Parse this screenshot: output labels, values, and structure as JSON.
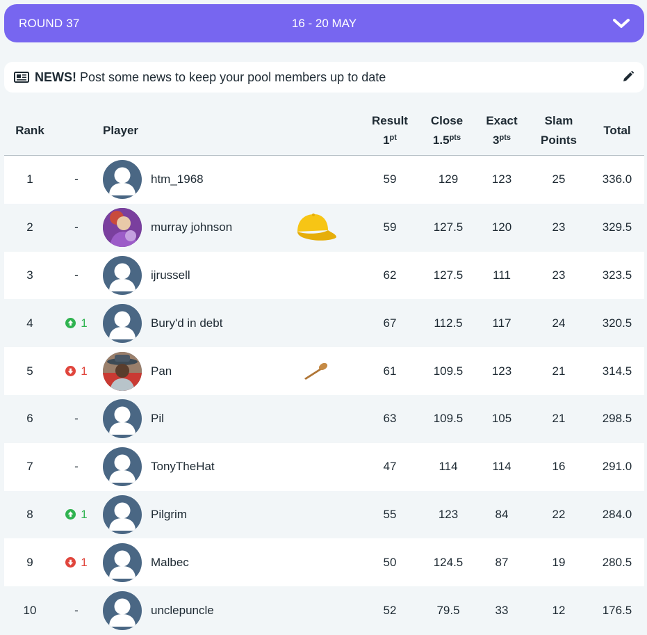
{
  "round": {
    "label": "ROUND 37",
    "dates": "16 - 20 MAY"
  },
  "news": {
    "title": "NEWS!",
    "text": "Post some news to keep your pool members up to date"
  },
  "headers": {
    "rank": "Rank",
    "player": "Player",
    "result": "Result",
    "result_pts": "1",
    "result_unit": "pt",
    "close": "Close",
    "close_pts": "1.5",
    "close_unit": "pts",
    "exact": "Exact",
    "exact_pts": "3",
    "exact_unit": "pts",
    "slam_line1": "Slam",
    "slam_line2": "Points",
    "total": "Total"
  },
  "rows": [
    {
      "rank": "1",
      "move": "-",
      "dir": "none",
      "avatar": "default",
      "name": "htm_1968",
      "badge": "",
      "result": "59",
      "close": "129",
      "exact": "123",
      "slam": "25",
      "total": "336.0"
    },
    {
      "rank": "2",
      "move": "-",
      "dir": "none",
      "avatar": "photo-purple",
      "name": "murray johnson",
      "badge": "cap",
      "result": "59",
      "close": "127.5",
      "exact": "120",
      "slam": "23",
      "total": "329.5"
    },
    {
      "rank": "3",
      "move": "-",
      "dir": "none",
      "avatar": "default",
      "name": "ijrussell",
      "badge": "",
      "result": "62",
      "close": "127.5",
      "exact": "111",
      "slam": "23",
      "total": "323.5"
    },
    {
      "rank": "4",
      "move": "1",
      "dir": "up",
      "avatar": "default",
      "name": "Bury'd in debt",
      "badge": "",
      "result": "67",
      "close": "112.5",
      "exact": "117",
      "slam": "24",
      "total": "320.5"
    },
    {
      "rank": "5",
      "move": "1",
      "dir": "down",
      "avatar": "photo-hat",
      "name": "Pan",
      "badge": "spoon",
      "result": "61",
      "close": "109.5",
      "exact": "123",
      "slam": "21",
      "total": "314.5"
    },
    {
      "rank": "6",
      "move": "-",
      "dir": "none",
      "avatar": "default",
      "name": "Pil",
      "badge": "",
      "result": "63",
      "close": "109.5",
      "exact": "105",
      "slam": "21",
      "total": "298.5"
    },
    {
      "rank": "7",
      "move": "-",
      "dir": "none",
      "avatar": "default",
      "name": "TonyTheHat",
      "badge": "",
      "result": "47",
      "close": "114",
      "exact": "114",
      "slam": "16",
      "total": "291.0"
    },
    {
      "rank": "8",
      "move": "1",
      "dir": "up",
      "avatar": "default",
      "name": "Pilgrim",
      "badge": "",
      "result": "55",
      "close": "123",
      "exact": "84",
      "slam": "22",
      "total": "284.0"
    },
    {
      "rank": "9",
      "move": "1",
      "dir": "down",
      "avatar": "default",
      "name": "Malbec",
      "badge": "",
      "result": "50",
      "close": "124.5",
      "exact": "87",
      "slam": "19",
      "total": "280.5"
    },
    {
      "rank": "10",
      "move": "-",
      "dir": "none",
      "avatar": "default",
      "name": "unclepuncle",
      "badge": "",
      "result": "52",
      "close": "79.5",
      "exact": "33",
      "slam": "12",
      "total": "176.5"
    }
  ],
  "colors": {
    "accent": "#7766f0",
    "up": "#2fb350",
    "down": "#e0453c",
    "avatar": "#4a6784"
  },
  "icons": {
    "chevron": "chevron-down-icon",
    "news": "newspaper-icon",
    "edit": "pencil-icon",
    "up": "arrow-circle-up-icon",
    "down": "arrow-circle-down-icon"
  }
}
